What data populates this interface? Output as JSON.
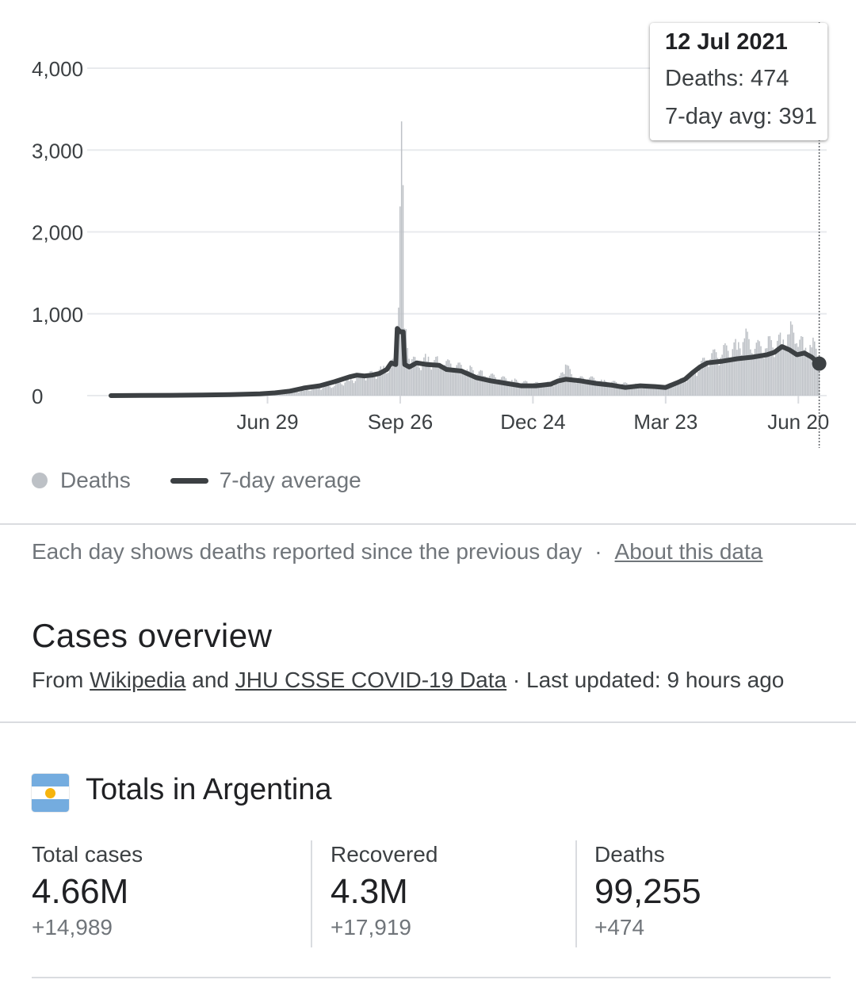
{
  "tooltip": {
    "date": "12 Jul 2021",
    "deaths_line": "Deaths: 474",
    "avg_line": "7-day avg: 391"
  },
  "legend": {
    "deaths_label": "Deaths",
    "avg_label": "7-day average"
  },
  "note": {
    "text": "Each day shows deaths reported since the previous day",
    "separator": "·",
    "link": "About this data"
  },
  "overview": {
    "title": "Cases overview",
    "from": "From",
    "source1": "Wikipedia",
    "and": "and",
    "source2": "JHU CSSE COVID-19 Data",
    "updated": "· Last updated: 9 hours ago"
  },
  "totals": {
    "title": "Totals in Argentina",
    "flag_icon": "argentina-flag-icon",
    "stats": [
      {
        "label": "Total cases",
        "value": "4.66M",
        "delta": "+14,989"
      },
      {
        "label": "Recovered",
        "value": "4.3M",
        "delta": "+17,919"
      },
      {
        "label": "Deaths",
        "value": "99,255",
        "delta": "+474"
      }
    ]
  },
  "colors": {
    "bars": "#bdc1c6",
    "avg_line": "#3c4043",
    "grid": "#e8eaed",
    "text_secondary": "#70757a"
  },
  "chart_data": {
    "type": "bar",
    "ylim": [
      0,
      4000
    ],
    "yticks": [
      "0",
      "1,000",
      "2,000",
      "3,000",
      "4,000"
    ],
    "ytick_values": [
      0,
      1000,
      2000,
      3000,
      4000
    ],
    "xticks": [
      "Jun 29",
      "Sep 26",
      "Dec 24",
      "Mar 23",
      "Jun 20"
    ],
    "xtick_days": [
      105,
      194,
      283,
      372,
      461
    ],
    "grid": true,
    "legend_position": "bottom-left",
    "series": [
      {
        "name": "Deaths",
        "kind": "bars",
        "points": [
          [
            0,
            0
          ],
          [
            20,
            1
          ],
          [
            40,
            2
          ],
          [
            60,
            3
          ],
          [
            80,
            8
          ],
          [
            100,
            16
          ],
          [
            110,
            25
          ],
          [
            120,
            35
          ],
          [
            130,
            60
          ],
          [
            140,
            90
          ],
          [
            150,
            120
          ],
          [
            160,
            180
          ],
          [
            170,
            220
          ],
          [
            176,
            250
          ],
          [
            182,
            300
          ],
          [
            188,
            340
          ],
          [
            192,
            420
          ],
          [
            195,
            3350
          ],
          [
            197,
            820
          ],
          [
            200,
            450
          ],
          [
            205,
            360
          ],
          [
            212,
            420
          ],
          [
            220,
            380
          ],
          [
            230,
            340
          ],
          [
            240,
            300
          ],
          [
            250,
            240
          ],
          [
            260,
            200
          ],
          [
            270,
            170
          ],
          [
            280,
            140
          ],
          [
            290,
            130
          ],
          [
            300,
            150
          ],
          [
            305,
            380
          ],
          [
            310,
            180
          ],
          [
            320,
            200
          ],
          [
            330,
            160
          ],
          [
            340,
            140
          ],
          [
            350,
            120
          ],
          [
            360,
            110
          ],
          [
            370,
            100
          ],
          [
            380,
            150
          ],
          [
            390,
            250
          ],
          [
            400,
            420
          ],
          [
            410,
            500
          ],
          [
            420,
            560
          ],
          [
            425,
            700
          ],
          [
            430,
            520
          ],
          [
            440,
            580
          ],
          [
            450,
            620
          ],
          [
            455,
            750
          ],
          [
            460,
            640
          ],
          [
            465,
            560
          ],
          [
            470,
            590
          ],
          [
            475,
            474
          ]
        ]
      },
      {
        "name": "7-day average",
        "kind": "line",
        "points": [
          [
            0,
            0
          ],
          [
            20,
            2
          ],
          [
            40,
            4
          ],
          [
            60,
            7
          ],
          [
            80,
            12
          ],
          [
            100,
            22
          ],
          [
            110,
            34
          ],
          [
            120,
            55
          ],
          [
            130,
            95
          ],
          [
            140,
            120
          ],
          [
            150,
            170
          ],
          [
            155,
            200
          ],
          [
            160,
            230
          ],
          [
            165,
            250
          ],
          [
            170,
            240
          ],
          [
            175,
            250
          ],
          [
            180,
            270
          ],
          [
            185,
            320
          ],
          [
            188,
            400
          ],
          [
            191,
            380
          ],
          [
            192,
            820
          ],
          [
            194,
            780
          ],
          [
            196,
            780
          ],
          [
            197,
            380
          ],
          [
            200,
            350
          ],
          [
            205,
            400
          ],
          [
            212,
            380
          ],
          [
            220,
            370
          ],
          [
            225,
            320
          ],
          [
            235,
            300
          ],
          [
            245,
            220
          ],
          [
            255,
            180
          ],
          [
            265,
            150
          ],
          [
            275,
            120
          ],
          [
            285,
            120
          ],
          [
            295,
            140
          ],
          [
            300,
            180
          ],
          [
            305,
            200
          ],
          [
            315,
            180
          ],
          [
            325,
            150
          ],
          [
            335,
            130
          ],
          [
            345,
            100
          ],
          [
            355,
            120
          ],
          [
            365,
            110
          ],
          [
            372,
            100
          ],
          [
            380,
            160
          ],
          [
            385,
            200
          ],
          [
            390,
            280
          ],
          [
            395,
            350
          ],
          [
            400,
            400
          ],
          [
            410,
            420
          ],
          [
            420,
            450
          ],
          [
            430,
            470
          ],
          [
            440,
            500
          ],
          [
            445,
            530
          ],
          [
            450,
            600
          ],
          [
            455,
            560
          ],
          [
            460,
            500
          ],
          [
            465,
            520
          ],
          [
            470,
            470
          ],
          [
            475,
            391
          ]
        ]
      }
    ],
    "x_end_day": 480
  }
}
